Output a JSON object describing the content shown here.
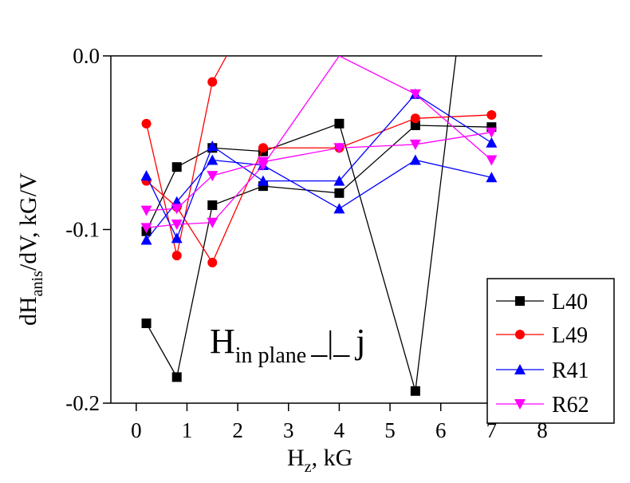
{
  "chart_data": {
    "type": "line",
    "xlabel": {
      "main": "H",
      "sub": "z",
      "rest": ", kG"
    },
    "ylabel": {
      "main": "dH",
      "sub": "anis",
      "rest": "/dV, kG/V"
    },
    "annotation": {
      "main": "H",
      "sub": "in plane",
      "symbol": "_|_",
      "rest": "j"
    },
    "xlim": [
      -0.5,
      8
    ],
    "ylim": [
      -0.2,
      0
    ],
    "xticks": [
      0,
      1,
      2,
      3,
      4,
      5,
      6,
      7,
      8
    ],
    "yticks": [
      0.0,
      -0.1,
      -0.2
    ],
    "ytick_labels": [
      "0.0",
      "-0.1",
      "-0.2"
    ],
    "xtick_labels": [
      "0",
      "1",
      "2",
      "3",
      "4",
      "5",
      "6",
      "7",
      "8"
    ],
    "grid": false,
    "legend_position": "bottom-right",
    "series": [
      {
        "name": "L40",
        "color": "#000000",
        "marker": "square",
        "lines": [
          {
            "x": [
              0.2,
              0.8,
              1.5,
              2.5,
              4.0,
              5.5,
              6.3
            ],
            "y": [
              -0.101,
              -0.064,
              -0.053,
              -0.055,
              -0.039,
              -0.193,
              0.0
            ]
          },
          {
            "x": [
              0.2,
              0.8,
              1.5,
              2.5,
              4.0,
              5.5,
              7.0
            ],
            "y": [
              -0.154,
              -0.185,
              -0.086,
              -0.075,
              -0.079,
              -0.04,
              -0.041
            ]
          }
        ]
      },
      {
        "name": "L49",
        "color": "#ff0000",
        "marker": "circle",
        "lines": [
          {
            "x": [
              0.2,
              0.8,
              1.5,
              1.78
            ],
            "y": [
              -0.039,
              -0.115,
              -0.015,
              0.0
            ]
          },
          {
            "x": [
              0.2,
              0.8,
              1.5,
              2.5,
              4.0,
              5.5,
              7.0
            ],
            "y": [
              -0.072,
              -0.087,
              -0.119,
              -0.053,
              -0.053,
              -0.036,
              -0.034
            ]
          }
        ]
      },
      {
        "name": "R41",
        "color": "#0000ff",
        "marker": "triangle-up",
        "lines": [
          {
            "x": [
              0.2,
              0.8,
              1.5,
              2.5,
              4.0,
              5.5,
              7.0
            ],
            "y": [
              -0.069,
              -0.105,
              -0.052,
              -0.072,
              -0.072,
              -0.022,
              -0.05
            ]
          },
          {
            "x": [
              0.2,
              0.8,
              1.5,
              2.5,
              4.0,
              5.5,
              7.0
            ],
            "y": [
              -0.106,
              -0.084,
              -0.06,
              -0.063,
              -0.088,
              -0.06,
              -0.07
            ]
          }
        ]
      },
      {
        "name": "R62",
        "color": "#ff00ff",
        "marker": "triangle-down",
        "lines": [
          {
            "x": [
              0.2,
              0.8,
              1.5,
              2.5,
              4.0,
              5.5,
              7.0
            ],
            "y": [
              -0.089,
              -0.088,
              -0.069,
              -0.061,
              -0.053,
              -0.051,
              -0.044
            ]
          },
          {
            "x": [
              0.2,
              0.8,
              1.5,
              2.5,
              4.0,
              5.5,
              7.0
            ],
            "y": [
              -0.099,
              -0.097,
              -0.096,
              -0.063,
              0.0,
              -0.022,
              -0.06
            ]
          }
        ]
      }
    ]
  }
}
